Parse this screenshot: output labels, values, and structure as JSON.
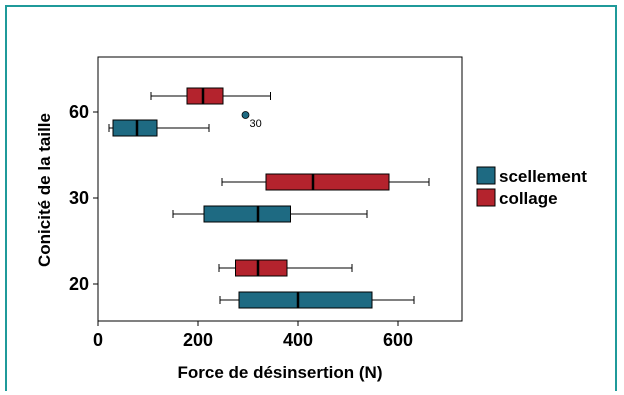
{
  "chart_data": {
    "type": "boxplot",
    "orientation": "horizontal",
    "xlabel": "Force de désinsertion  (N)",
    "ylabel": "Conicité de la taille",
    "xlim": [
      0,
      730
    ],
    "xticks": [
      0,
      200,
      400,
      600
    ],
    "categories": [
      "60",
      "30",
      "20"
    ],
    "legend": {
      "placement": "right",
      "entries": [
        "scellement",
        "collage"
      ]
    },
    "series": [
      {
        "name": "scellement",
        "color": "#1e6a82",
        "boxes": [
          {
            "category": "60",
            "whisker_low": 22,
            "q1": 30,
            "median": 78,
            "q3": 118,
            "whisker_high": 222,
            "outliers": [
              {
                "value": 295,
                "label": "30"
              }
            ]
          },
          {
            "category": "30",
            "whisker_low": 150,
            "q1": 212,
            "median": 320,
            "q3": 385,
            "whisker_high": 538,
            "outliers": []
          },
          {
            "category": "20",
            "whisker_low": 244,
            "q1": 282,
            "median": 400,
            "q3": 548,
            "whisker_high": 632,
            "outliers": []
          }
        ]
      },
      {
        "name": "collage",
        "color": "#b4232d",
        "boxes": [
          {
            "category": "60",
            "whisker_low": 106,
            "q1": 178,
            "median": 210,
            "q3": 250,
            "whisker_high": 345,
            "outliers": []
          },
          {
            "category": "30",
            "whisker_low": 248,
            "q1": 336,
            "median": 430,
            "q3": 582,
            "whisker_high": 662,
            "outliers": []
          },
          {
            "category": "20",
            "whisker_low": 242,
            "q1": 275,
            "median": 320,
            "q3": 378,
            "whisker_high": 508,
            "outliers": []
          }
        ]
      }
    ]
  }
}
